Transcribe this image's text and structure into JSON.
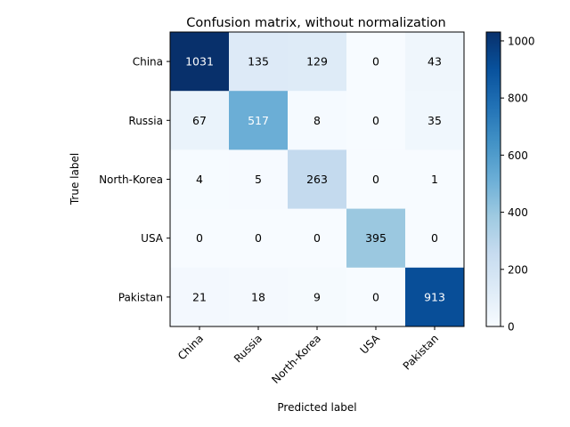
{
  "chart_data": {
    "type": "heatmap",
    "title": "Confusion matrix, without normalization",
    "xlabel": "Predicted label",
    "ylabel": "True label",
    "row_labels": [
      "China",
      "Russia",
      "North-Korea",
      "USA",
      "Pakistan"
    ],
    "col_labels": [
      "China",
      "Russia",
      "North-Korea",
      "USA",
      "Pakistan"
    ],
    "values": [
      [
        1031,
        135,
        129,
        0,
        43
      ],
      [
        67,
        517,
        8,
        0,
        35
      ],
      [
        4,
        5,
        263,
        0,
        1
      ],
      [
        0,
        0,
        0,
        395,
        0
      ],
      [
        21,
        18,
        9,
        0,
        913
      ]
    ],
    "colormap": "Blues",
    "color_range": [
      0,
      1031
    ],
    "colorbar_ticks": [
      0,
      200,
      400,
      600,
      800,
      1000
    ],
    "colorbar_tick_labels": [
      "0",
      "200",
      "400",
      "600",
      "800",
      "1000"
    ],
    "text_color_light": "#ffffff",
    "text_color_dark": "#000000",
    "grid": false
  }
}
